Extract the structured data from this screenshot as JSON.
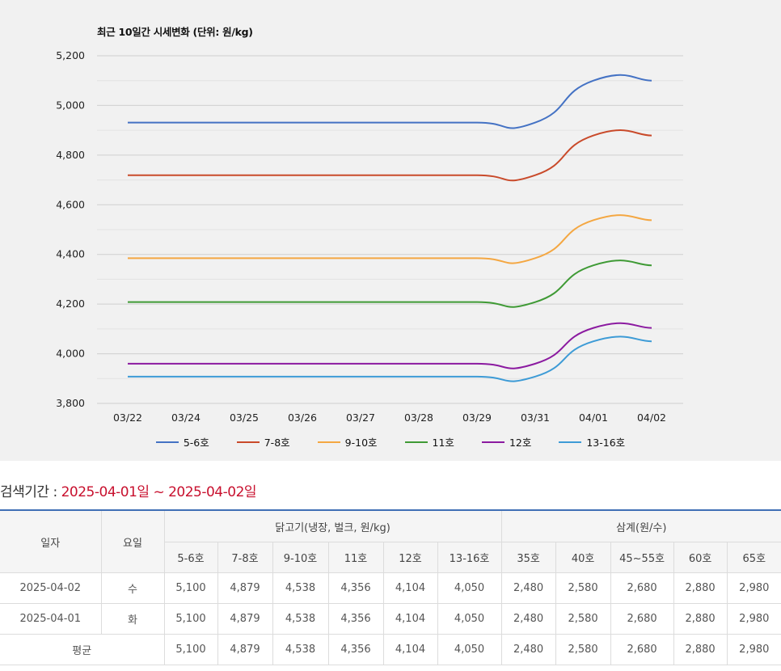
{
  "chart_data": {
    "type": "line",
    "title": "최근 10일간 시세변화 (단위: 원/kg)",
    "categories": [
      "03/22",
      "03/24",
      "03/25",
      "03/26",
      "03/27",
      "03/28",
      "03/29",
      "03/31",
      "04/01",
      "04/02"
    ],
    "ylim": [
      3800,
      5200
    ],
    "yticks": [
      "3,800",
      "4,000",
      "4,200",
      "4,400",
      "4,600",
      "4,800",
      "5,000",
      "5,200"
    ],
    "ytick_values": [
      3800,
      4000,
      4200,
      4400,
      4600,
      4800,
      5000,
      5200
    ],
    "grid": true,
    "legend_position": "bottom",
    "series": [
      {
        "name": "5-6호",
        "color": "#4472c4",
        "values": [
          4931,
          4931,
          4931,
          4931,
          4931,
          4931,
          4931,
          4931,
          5100,
          5100
        ]
      },
      {
        "name": "7-8호",
        "color": "#c94a2a",
        "values": [
          4719,
          4719,
          4719,
          4719,
          4719,
          4719,
          4719,
          4719,
          4879,
          4879
        ]
      },
      {
        "name": "9-10호",
        "color": "#f4a742",
        "values": [
          4385,
          4385,
          4385,
          4385,
          4385,
          4385,
          4385,
          4385,
          4538,
          4538
        ]
      },
      {
        "name": "11호",
        "color": "#3f9a35",
        "values": [
          4208,
          4208,
          4208,
          4208,
          4208,
          4208,
          4208,
          4208,
          4356,
          4356
        ]
      },
      {
        "name": "12호",
        "color": "#8b1aa0",
        "values": [
          3960,
          3960,
          3960,
          3960,
          3960,
          3960,
          3960,
          3960,
          4104,
          4104
        ]
      },
      {
        "name": "13-16호",
        "color": "#3d9bd6",
        "values": [
          3908,
          3908,
          3908,
          3908,
          3908,
          3908,
          3908,
          3908,
          4050,
          4050
        ]
      }
    ]
  },
  "search_period": {
    "label": "검색기간 : ",
    "range": "2025-04-01일 ~ 2025-04-02일"
  },
  "table": {
    "col_date": "일자",
    "col_day": "요일",
    "group_chicken": "닭고기(냉장, 벌크, 원/kg)",
    "group_samgye": "삼계(원/수)",
    "sub_headers": [
      "5-6호",
      "7-8호",
      "9-10호",
      "11호",
      "12호",
      "13-16호",
      "35호",
      "40호",
      "45~55호",
      "60호",
      "65호"
    ],
    "rows": [
      {
        "date": "2025-04-02",
        "day": "수",
        "values": [
          "5,100",
          "4,879",
          "4,538",
          "4,356",
          "4,104",
          "4,050",
          "2,480",
          "2,580",
          "2,680",
          "2,880",
          "2,980"
        ]
      },
      {
        "date": "2025-04-01",
        "day": "화",
        "values": [
          "5,100",
          "4,879",
          "4,538",
          "4,356",
          "4,104",
          "4,050",
          "2,480",
          "2,580",
          "2,680",
          "2,880",
          "2,980"
        ]
      }
    ],
    "average_label": "평균",
    "average_values": [
      "5,100",
      "4,879",
      "4,538",
      "4,356",
      "4,104",
      "4,050",
      "2,480",
      "2,580",
      "2,680",
      "2,880",
      "2,980"
    ]
  }
}
